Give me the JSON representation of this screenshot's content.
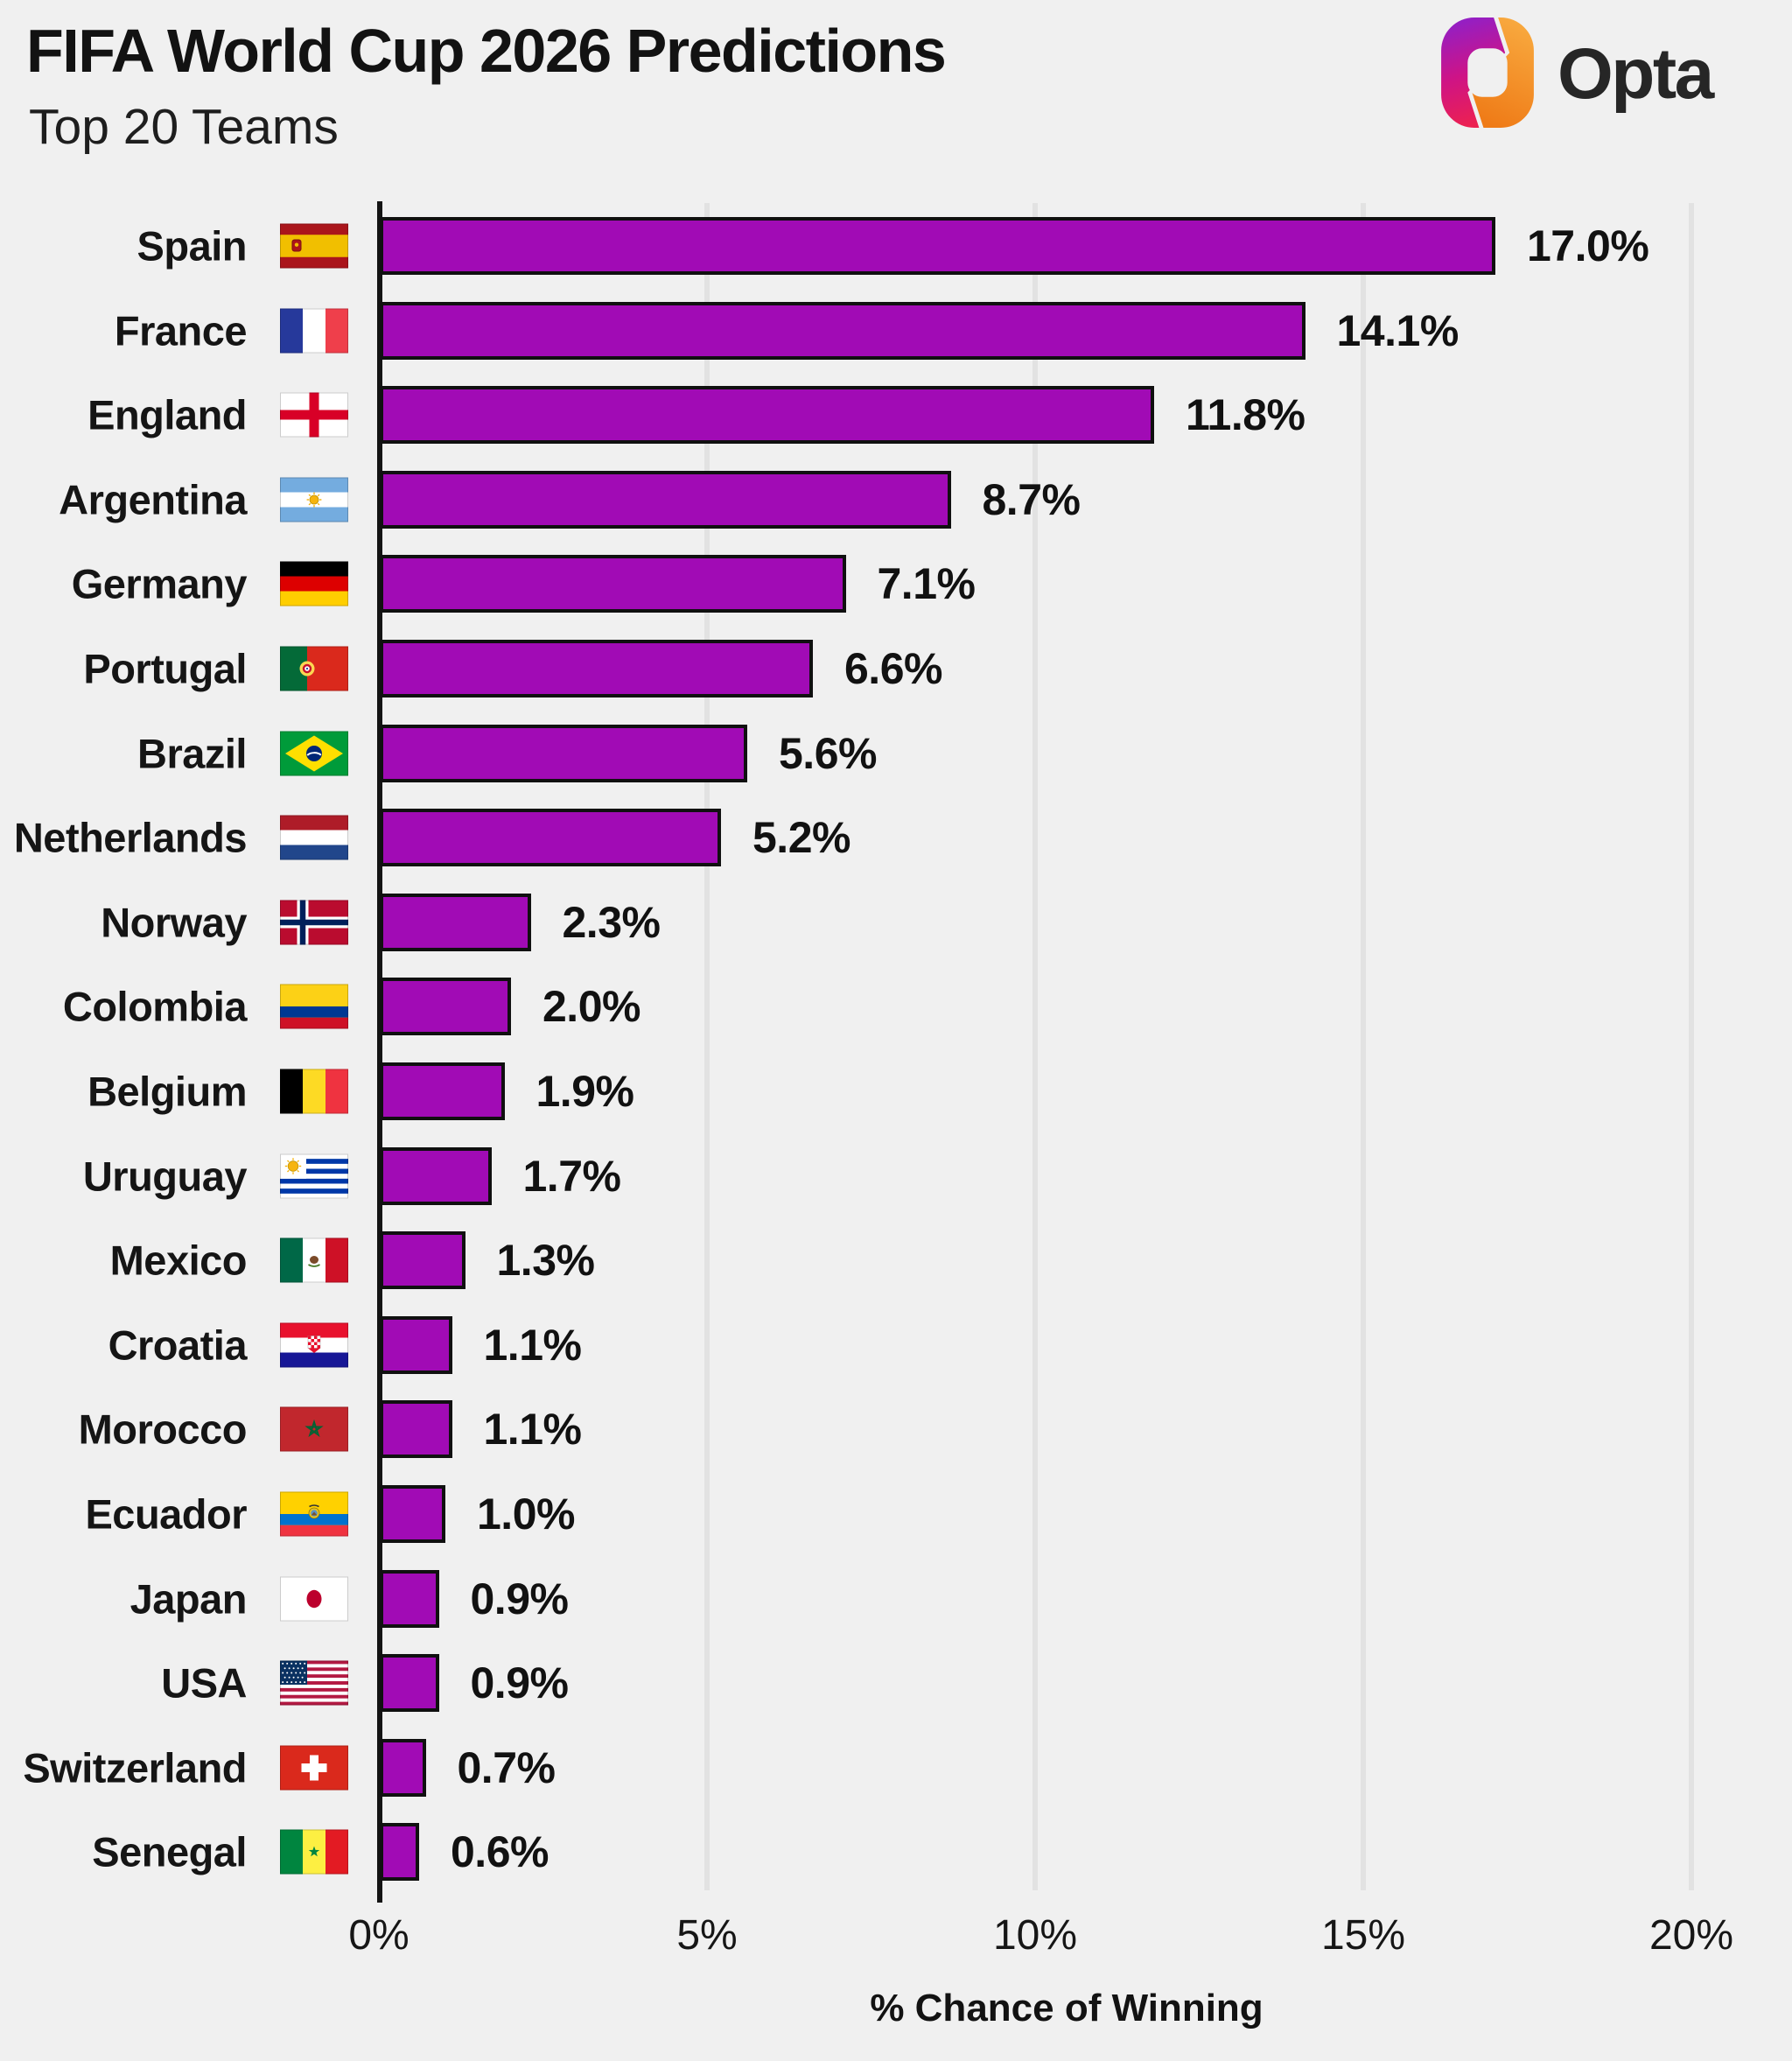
{
  "header": {
    "title": "FIFA World Cup 2026 Predictions",
    "subtitle": "Top 20 Teams"
  },
  "brand": {
    "name": "Opta",
    "text_color": "#262626",
    "mark_colors": {
      "left_top": "#8A21CE",
      "left_mid": "#CE1386",
      "left_bottom": "#EC2151",
      "right_top": "#F9AD42",
      "right_bottom": "#EF7B17"
    }
  },
  "chart_data": {
    "type": "bar",
    "orientation": "horizontal",
    "title": "FIFA World Cup 2026 Predictions",
    "subtitle": "Top 20 Teams",
    "xlabel": "% Chance of Winning",
    "xlim": [
      0,
      20
    ],
    "grid": true,
    "legend": false,
    "bar_color": "#A10BB5",
    "bar_border_color": "#101010",
    "gridline_color": "#E2E2E2",
    "background_color": "#F0F0F0",
    "x_ticks": [
      {
        "value": 0,
        "label": "0%"
      },
      {
        "value": 5,
        "label": "5%"
      },
      {
        "value": 10,
        "label": "10%"
      },
      {
        "value": 15,
        "label": "15%"
      },
      {
        "value": 20,
        "label": "20%"
      }
    ],
    "categories": [
      "Spain",
      "France",
      "England",
      "Argentina",
      "Germany",
      "Portugal",
      "Brazil",
      "Netherlands",
      "Norway",
      "Colombia",
      "Belgium",
      "Uruguay",
      "Mexico",
      "Croatia",
      "Morocco",
      "Ecuador",
      "Japan",
      "USA",
      "Switzerland",
      "Senegal"
    ],
    "values": [
      17.0,
      14.1,
      11.8,
      8.7,
      7.1,
      6.6,
      5.6,
      5.2,
      2.3,
      2.0,
      1.9,
      1.7,
      1.3,
      1.1,
      1.1,
      1.0,
      0.9,
      0.9,
      0.7,
      0.6
    ],
    "value_labels": [
      "17.0%",
      "14.1%",
      "11.8%",
      "8.7%",
      "7.1%",
      "6.6%",
      "5.6%",
      "5.2%",
      "2.3%",
      "2.0%",
      "1.9%",
      "1.7%",
      "1.3%",
      "1.1%",
      "1.1%",
      "1.0%",
      "0.9%",
      "0.9%",
      "0.7%",
      "0.6%"
    ],
    "flags": [
      "spain",
      "france",
      "england",
      "argentina",
      "germany",
      "portugal",
      "brazil",
      "netherlands",
      "norway",
      "colombia",
      "belgium",
      "uruguay",
      "mexico",
      "croatia",
      "morocco",
      "ecuador",
      "japan",
      "usa",
      "switzerland",
      "senegal"
    ]
  }
}
